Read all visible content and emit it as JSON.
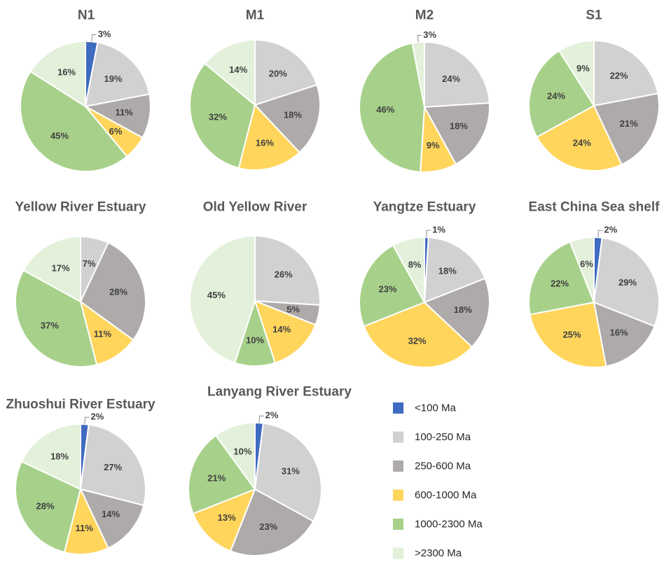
{
  "categories": [
    "<100 Ma",
    "100-250 Ma",
    "250-600 Ma",
    "600-1000 Ma",
    "1000-2300 Ma",
    ">2300 Ma"
  ],
  "colors": [
    "#3f6cc0",
    "#d2d1d1",
    "#aeaaaa",
    "#ffd55c",
    "#a7d18a",
    "#e3f0da"
  ],
  "legend": {
    "items": [
      {
        "label": "<100 Ma"
      },
      {
        "label": "100-250 Ma"
      },
      {
        "label": "250-600 Ma"
      },
      {
        "label": "600-1000 Ma"
      },
      {
        "label": "1000-2300 Ma"
      },
      {
        "label": ">2300 Ma"
      }
    ]
  },
  "chart_data": [
    {
      "type": "pie",
      "title": "N1",
      "labels": [
        "<100 Ma",
        "100-250 Ma",
        "250-600 Ma",
        "600-1000 Ma",
        "1000-2300 Ma",
        ">2300 Ma"
      ],
      "values": [
        3,
        19,
        11,
        6,
        45,
        16
      ],
      "value_labels": [
        "3%",
        "19%",
        "11%",
        "6%",
        "45%",
        "16%"
      ]
    },
    {
      "type": "pie",
      "title": "M1",
      "labels": [
        "<100 Ma",
        "100-250 Ma",
        "250-600 Ma",
        "600-1000 Ma",
        "1000-2300 Ma",
        ">2300 Ma"
      ],
      "values": [
        0,
        20,
        18,
        16,
        32,
        14
      ],
      "value_labels": [
        "",
        "20%",
        "18%",
        "16%",
        "32%",
        "14%"
      ]
    },
    {
      "type": "pie",
      "title": "M2",
      "labels": [
        "<100 Ma",
        "100-250 Ma",
        "250-600 Ma",
        "600-1000 Ma",
        "1000-2300 Ma",
        ">2300 Ma"
      ],
      "values": [
        0,
        24,
        18,
        9,
        46,
        3
      ],
      "value_labels": [
        "",
        "24%",
        "18%",
        "9%",
        "46%",
        "3%"
      ]
    },
    {
      "type": "pie",
      "title": "S1",
      "labels": [
        "<100 Ma",
        "100-250 Ma",
        "250-600 Ma",
        "600-1000 Ma",
        "1000-2300 Ma",
        ">2300 Ma"
      ],
      "values": [
        0,
        22,
        21,
        24,
        24,
        9
      ],
      "value_labels": [
        "",
        "22%",
        "21%",
        "24%",
        "24%",
        "9%"
      ]
    },
    {
      "type": "pie",
      "title": "Yellow River Estuary",
      "labels": [
        "<100 Ma",
        "100-250 Ma",
        "250-600 Ma",
        "600-1000 Ma",
        "1000-2300 Ma",
        ">2300 Ma"
      ],
      "values": [
        0,
        7,
        28,
        11,
        37,
        17
      ],
      "value_labels": [
        "",
        "7%",
        "28%",
        "11%",
        "37%",
        "17%"
      ]
    },
    {
      "type": "pie",
      "title": "Old Yellow River",
      "labels": [
        "<100 Ma",
        "100-250 Ma",
        "250-600 Ma",
        "600-1000 Ma",
        "1000-2300 Ma",
        ">2300 Ma"
      ],
      "values": [
        0,
        26,
        5,
        14,
        10,
        45
      ],
      "value_labels": [
        "",
        "26%",
        "5%",
        "14%",
        "10%",
        "45%"
      ]
    },
    {
      "type": "pie",
      "title": "Yangtze Estuary",
      "labels": [
        "<100 Ma",
        "100-250 Ma",
        "250-600 Ma",
        "600-1000 Ma",
        "1000-2300 Ma",
        ">2300 Ma"
      ],
      "values": [
        1,
        18,
        18,
        32,
        23,
        8
      ],
      "value_labels": [
        "1%",
        "18%",
        "18%",
        "32%",
        "23%",
        "8%"
      ]
    },
    {
      "type": "pie",
      "title": "East China Sea shelf",
      "labels": [
        "<100 Ma",
        "100-250 Ma",
        "250-600 Ma",
        "600-1000 Ma",
        "1000-2300 Ma",
        ">2300 Ma"
      ],
      "values": [
        2,
        29,
        16,
        25,
        22,
        6
      ],
      "value_labels": [
        "2%",
        "29%",
        "16%",
        "25%",
        "22%",
        "6%"
      ]
    },
    {
      "type": "pie",
      "title": "Zhuoshui River Estuary",
      "labels": [
        "<100 Ma",
        "100-250 Ma",
        "250-600 Ma",
        "600-1000 Ma",
        "1000-2300 Ma",
        ">2300 Ma"
      ],
      "values": [
        2,
        27,
        14,
        11,
        28,
        18
      ],
      "value_labels": [
        "2%",
        "27%",
        "14%",
        "11%",
        "28%",
        "18%"
      ]
    },
    {
      "type": "pie",
      "title": "Lanyang River Estuary",
      "labels": [
        "<100 Ma",
        "100-250 Ma",
        "250-600 Ma",
        "600-1000 Ma",
        "1000-2300 Ma",
        ">2300 Ma"
      ],
      "values": [
        2,
        31,
        23,
        13,
        21,
        10
      ],
      "value_labels": [
        "2%",
        "31%",
        "23%",
        "13%",
        "21%",
        "10%"
      ]
    }
  ]
}
